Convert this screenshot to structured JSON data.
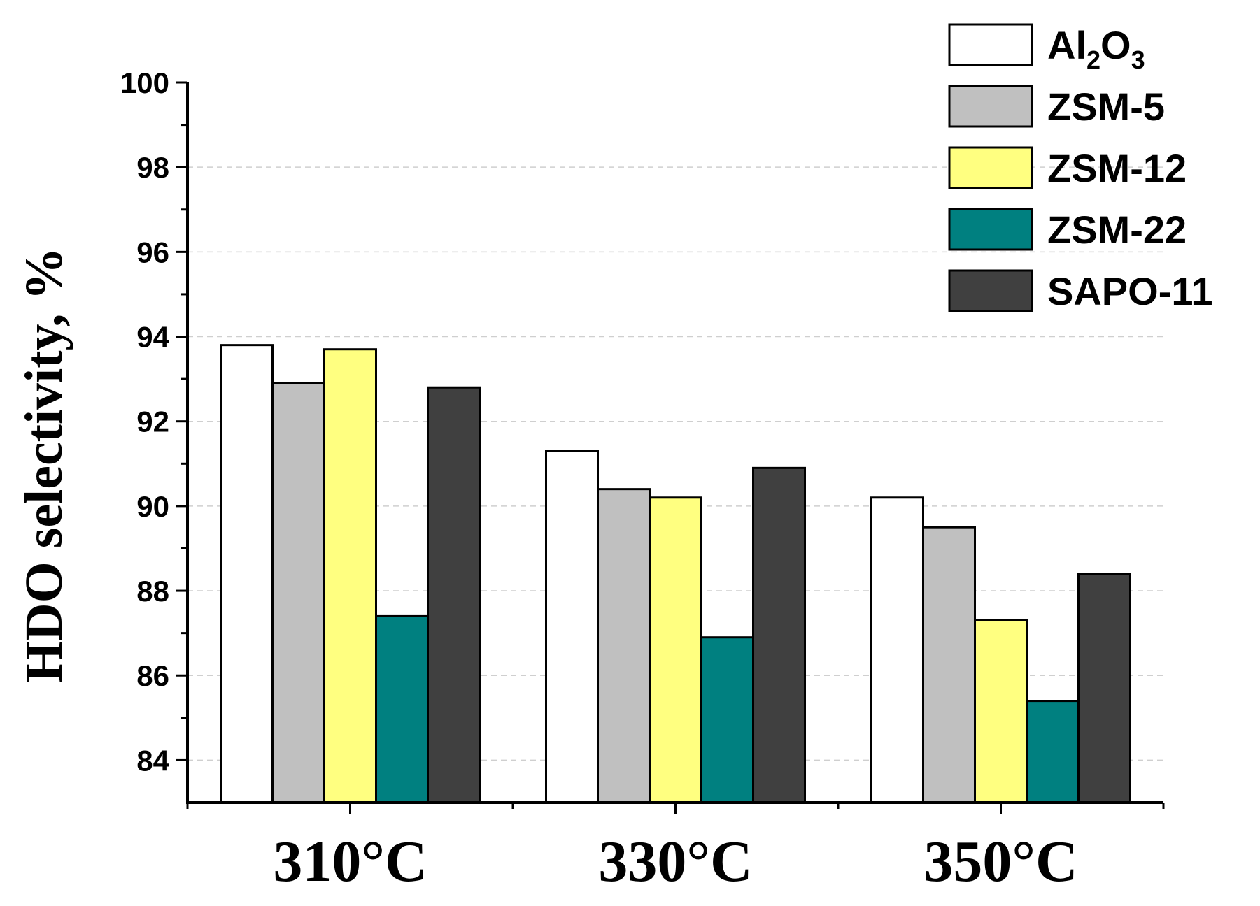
{
  "chart_data": {
    "type": "bar",
    "title": "",
    "xlabel": "",
    "ylabel": "HDO selectivity, %",
    "categories": [
      "310°C",
      "330°C",
      "350°C"
    ],
    "ylim": [
      83,
      100
    ],
    "yticks": [
      84,
      86,
      88,
      90,
      92,
      94,
      96,
      98,
      100
    ],
    "grid": "horizontal dashed",
    "legend_position": "top-right",
    "series": [
      {
        "name": "Al2O3",
        "legend_parts": [
          "Al",
          "2",
          "O",
          "3"
        ],
        "color": "#ffffff",
        "values": [
          93.8,
          91.3,
          90.2
        ]
      },
      {
        "name": "ZSM-5",
        "legend_parts": [
          "ZSM-5"
        ],
        "color": "#c0c0c0",
        "values": [
          92.9,
          90.4,
          89.5
        ]
      },
      {
        "name": "ZSM-12",
        "legend_parts": [
          "ZSM-12"
        ],
        "color": "#ffff80",
        "values": [
          93.7,
          90.2,
          87.3
        ]
      },
      {
        "name": "ZSM-22",
        "legend_parts": [
          "ZSM-22"
        ],
        "color": "#008080",
        "values": [
          87.4,
          86.9,
          85.4
        ]
      },
      {
        "name": "SAPO-11",
        "legend_parts": [
          "SAPO-11"
        ],
        "color": "#404040",
        "values": [
          92.8,
          90.9,
          88.4
        ]
      }
    ]
  }
}
